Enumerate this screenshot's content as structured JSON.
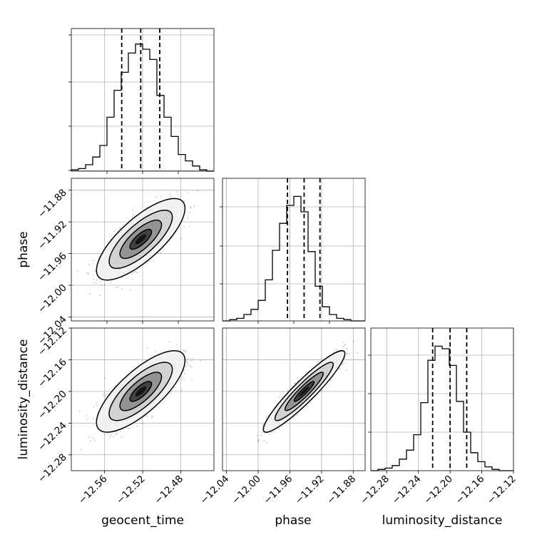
{
  "chart_data": [
    {
      "type": "histogram",
      "panel": "geocent_time",
      "x_ticks": [
        "−12.56",
        "−12.52",
        "−12.48"
      ],
      "x_tick_values": [
        -12.56,
        -12.52,
        -12.48
      ],
      "xlim": [
        -12.595,
        -12.445
      ],
      "bin_edges_start": -12.595,
      "bin_width": 0.0075,
      "counts": [
        0.01,
        0.02,
        0.05,
        0.11,
        0.2,
        0.42,
        0.63,
        0.77,
        0.92,
        0.99,
        0.95,
        0.87,
        0.59,
        0.42,
        0.27,
        0.13,
        0.08,
        0.04,
        0.01,
        0
      ],
      "quantiles": [
        -12.542,
        -12.522,
        -12.502
      ]
    },
    {
      "type": "histogram",
      "panel": "phase",
      "x_ticks": [
        "−12.04",
        "−12.00",
        "−11.96",
        "−11.92",
        "−11.88"
      ],
      "x_tick_values": [
        -12.04,
        -12.0,
        -11.96,
        -11.92,
        -11.88
      ],
      "xlim": [
        -12.045,
        -11.865
      ],
      "bin_edges_start": -12.045,
      "bin_width": 0.009,
      "counts": [
        0,
        0.01,
        0.02,
        0.05,
        0.09,
        0.16,
        0.32,
        0.55,
        0.76,
        0.9,
        0.97,
        0.85,
        0.54,
        0.27,
        0.11,
        0.05,
        0.02,
        0.01,
        0,
        0
      ],
      "quantiles": [
        -11.963,
        -11.942,
        -11.922
      ]
    },
    {
      "type": "histogram",
      "panel": "luminosity_distance",
      "x_ticks": [
        "−12.28",
        "−12.24",
        "−12.20",
        "−12.16",
        "−12.12"
      ],
      "x_tick_values": [
        -12.28,
        -12.24,
        -12.2,
        -12.16,
        -12.12
      ],
      "xlim": [
        -12.3,
        -12.12
      ],
      "bin_edges_start": -12.3,
      "bin_width": 0.009,
      "counts": [
        0,
        0.01,
        0.02,
        0.04,
        0.09,
        0.16,
        0.28,
        0.53,
        0.86,
        0.97,
        0.95,
        0.82,
        0.54,
        0.3,
        0.14,
        0.07,
        0.03,
        0.01,
        0,
        0
      ],
      "quantiles": [
        -12.222,
        -12.2,
        -12.179
      ]
    },
    {
      "type": "scatter",
      "panel": "phase vs geocent_time",
      "x_range": [
        -12.595,
        -12.445
      ],
      "y_range": [
        -12.045,
        -11.865
      ],
      "y_ticks": [
        "−11.88",
        "−11.92",
        "−11.96",
        "−12.00",
        "−12.04"
      ],
      "y_tick_values": [
        -11.88,
        -11.92,
        -11.96,
        -12.0,
        -12.04
      ],
      "center": [
        -12.522,
        -11.942
      ],
      "std": [
        0.019,
        0.021
      ],
      "correlation": 0.76
    },
    {
      "type": "scatter",
      "panel": "luminosity_distance vs geocent_time",
      "x_range": [
        -12.595,
        -12.445
      ],
      "y_range": [
        -12.3,
        -12.12
      ],
      "y_ticks": [
        "−12.12",
        "−12.16",
        "−12.20",
        "−12.24",
        "−12.28"
      ],
      "y_tick_values": [
        -12.12,
        -12.16,
        -12.2,
        -12.24,
        -12.28
      ],
      "center": [
        -12.522,
        -12.2
      ],
      "std": [
        0.019,
        0.021
      ],
      "correlation": 0.76
    },
    {
      "type": "scatter",
      "panel": "luminosity_distance vs phase",
      "x_range": [
        -12.045,
        -11.865
      ],
      "y_range": [
        -12.3,
        -12.12
      ],
      "center": [
        -11.942,
        -12.2
      ],
      "std": [
        0.021,
        0.021
      ],
      "correlation": 0.93
    }
  ],
  "axis_labels": {
    "x1": "geocent_time",
    "x2": "phase",
    "x3": "luminosity_distance",
    "y2": "phase",
    "y3": "luminosity_distance"
  }
}
